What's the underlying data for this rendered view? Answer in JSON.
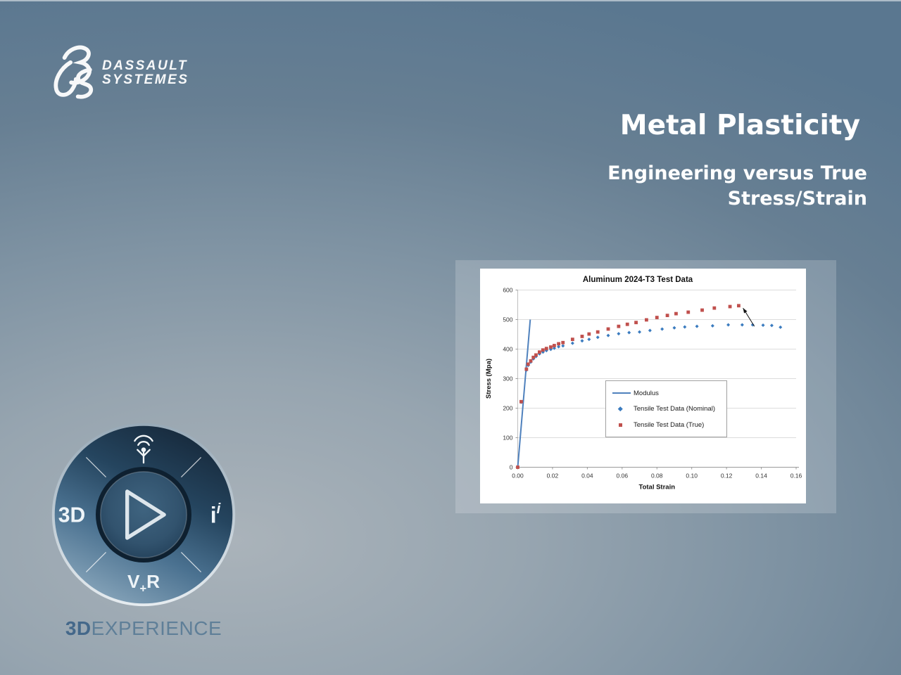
{
  "logo": {
    "line1": "DASSAULT",
    "line2": "SYSTEMES"
  },
  "titles": {
    "title": "Metal Plasticity",
    "subtitle_line1": "Engineering versus True",
    "subtitle_line2": "Stress/Strain"
  },
  "compass": {
    "left_label": "3D",
    "right_label_base": "i",
    "right_label_sup": "i",
    "bottom_label_v": "V",
    "bottom_label_plus": "+",
    "bottom_label_r": "R"
  },
  "brand": {
    "bold": "3D",
    "rest": "EXPERIENCE"
  },
  "colors": {
    "background_dark": "#5a7790",
    "background_light": "#aab3ba",
    "slide_text": "#ffffff",
    "brand_text": "#5f7f98",
    "modulus_blue": "#4f81bd",
    "nominal_blue": "#3a7bbf",
    "true_red": "#c0504d",
    "gridline_gray": "#dcdcdc"
  },
  "chart_data": {
    "type": "scatter",
    "title": "Aluminum 2024-T3 Test Data",
    "xlabel": "Total Strain",
    "ylabel": "Stress (Mpa)",
    "xlim": [
      0,
      0.16
    ],
    "ylim": [
      0,
      600
    ],
    "grid": "horizontal-only",
    "legend_position": "inside-center",
    "x_ticks": [
      {
        "v": 0.0,
        "label": "0.00"
      },
      {
        "v": 0.02,
        "label": "0.02"
      },
      {
        "v": 0.04,
        "label": "0.04"
      },
      {
        "v": 0.06,
        "label": "0.06"
      },
      {
        "v": 0.08,
        "label": "0.08"
      },
      {
        "v": 0.1,
        "label": "0.10"
      },
      {
        "v": 0.12,
        "label": "0.12"
      },
      {
        "v": 0.14,
        "label": "0.14"
      },
      {
        "v": 0.16,
        "label": "0.16"
      }
    ],
    "y_ticks": [
      {
        "v": 0,
        "label": "0"
      },
      {
        "v": 100,
        "label": "100"
      },
      {
        "v": 200,
        "label": "200"
      },
      {
        "v": 300,
        "label": "300"
      },
      {
        "v": 400,
        "label": "400"
      },
      {
        "v": 500,
        "label": "500"
      },
      {
        "v": 600,
        "label": "600"
      }
    ],
    "series": [
      {
        "name": "Modulus",
        "render": "line",
        "color": "#4f81bd",
        "points": [
          [
            0,
            0
          ],
          [
            0.0072,
            500
          ]
        ]
      },
      {
        "name": "Tensile Test Data (Nominal)",
        "render": "scatter",
        "marker": "diamond",
        "color": "#3a7bbf",
        "points": [
          [
            0.0,
            0
          ],
          [
            0.002,
            220
          ],
          [
            0.005,
            329
          ],
          [
            0.006,
            345
          ],
          [
            0.0075,
            356
          ],
          [
            0.009,
            367
          ],
          [
            0.0105,
            375
          ],
          [
            0.0125,
            384
          ],
          [
            0.0145,
            390
          ],
          [
            0.0165,
            395
          ],
          [
            0.019,
            399
          ],
          [
            0.021,
            403
          ],
          [
            0.0235,
            408
          ],
          [
            0.026,
            411
          ],
          [
            0.0315,
            420
          ],
          [
            0.037,
            428
          ],
          [
            0.041,
            433
          ],
          [
            0.046,
            440
          ],
          [
            0.052,
            446
          ],
          [
            0.058,
            452
          ],
          [
            0.064,
            456
          ],
          [
            0.07,
            458
          ],
          [
            0.076,
            463
          ],
          [
            0.083,
            468
          ],
          [
            0.09,
            472
          ],
          [
            0.096,
            475
          ],
          [
            0.103,
            477
          ],
          [
            0.112,
            479
          ],
          [
            0.121,
            482
          ],
          [
            0.129,
            482
          ],
          [
            0.135,
            482
          ],
          [
            0.141,
            481
          ],
          [
            0.146,
            480
          ],
          [
            0.151,
            474
          ]
        ]
      },
      {
        "name": "Tensile Test Data (True)",
        "render": "scatter",
        "marker": "square",
        "color": "#c0504d",
        "points": [
          [
            0.0,
            0
          ],
          [
            0.002,
            222
          ],
          [
            0.005,
            332
          ],
          [
            0.006,
            349
          ],
          [
            0.0075,
            360
          ],
          [
            0.009,
            372
          ],
          [
            0.0105,
            380
          ],
          [
            0.0125,
            390
          ],
          [
            0.0145,
            397
          ],
          [
            0.0165,
            402
          ],
          [
            0.019,
            407
          ],
          [
            0.021,
            412
          ],
          [
            0.0235,
            418
          ],
          [
            0.026,
            422
          ],
          [
            0.0315,
            433
          ],
          [
            0.037,
            443
          ],
          [
            0.041,
            451
          ],
          [
            0.046,
            458
          ],
          [
            0.052,
            468
          ],
          [
            0.058,
            477
          ],
          [
            0.063,
            484
          ],
          [
            0.068,
            490
          ],
          [
            0.074,
            499
          ],
          [
            0.08,
            507
          ],
          [
            0.086,
            514
          ],
          [
            0.091,
            520
          ],
          [
            0.098,
            525
          ],
          [
            0.106,
            532
          ],
          [
            0.113,
            539
          ],
          [
            0.122,
            544
          ],
          [
            0.127,
            547
          ]
        ]
      }
    ],
    "annotation": {
      "arrow_from": [
        0.136,
        477
      ],
      "arrow_to": [
        0.1295,
        539
      ]
    }
  }
}
